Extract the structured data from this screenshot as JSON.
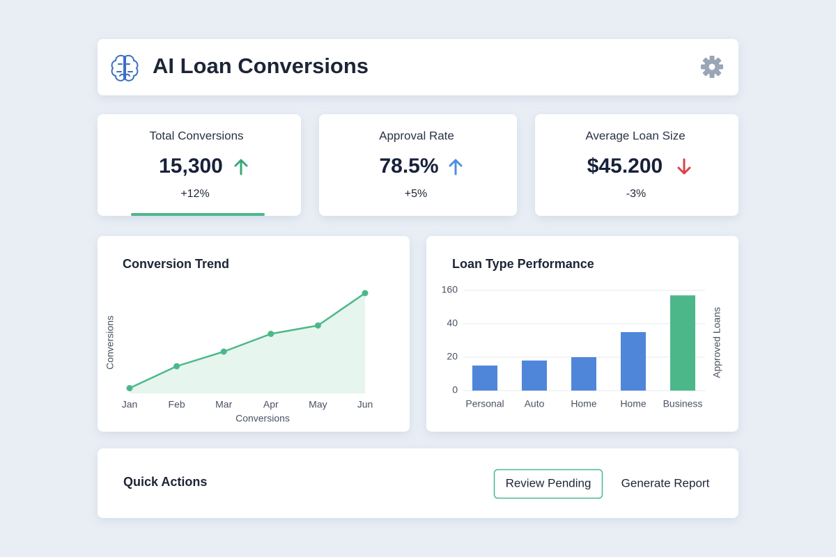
{
  "header": {
    "title": "AI Loan Conversions"
  },
  "kpis": [
    {
      "label": "Total Conversions",
      "value": "15,300",
      "change": "+12%"
    },
    {
      "label": "Approval Rate",
      "value": "78.5%",
      "change": "+5%"
    },
    {
      "label": "Average Loan Size",
      "value": "$45.200",
      "change": "-3%"
    }
  ],
  "chart_data": [
    {
      "type": "line",
      "title": "Conversion Trend",
      "categories": [
        "Jan",
        "Feb",
        "Mar",
        "Apr",
        "May",
        "Jun"
      ],
      "values": [
        5,
        26,
        40,
        57,
        65,
        96
      ],
      "ylim": [
        0,
        100
      ],
      "ylabel": "Conversions",
      "xlabel": "Conversions",
      "color": "#4cb88a"
    },
    {
      "type": "bar",
      "title": "Loan Type Performance",
      "categories": [
        "Personal",
        "Auto",
        "Home",
        "Home",
        "Business"
      ],
      "values": [
        15,
        18,
        20,
        35,
        142
      ],
      "colors": [
        "#4f86d9",
        "#4f86d9",
        "#4f86d9",
        "#4f86d9",
        "#4cb88a"
      ],
      "ylim": [
        0,
        160
      ],
      "yticks": [
        0,
        20,
        40,
        160
      ],
      "grid": true,
      "y2label": "Approved Loans"
    }
  ],
  "quick_actions": {
    "title": "Quick Actions",
    "buttons": [
      "Review Pending",
      "Generate Report"
    ]
  }
}
